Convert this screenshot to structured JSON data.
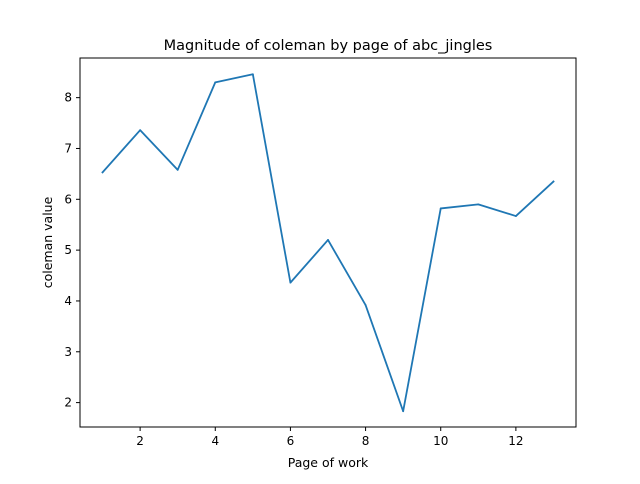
{
  "chart_data": {
    "type": "line",
    "title": "Magnitude of coleman by page of abc_jingles",
    "xlabel": "Page of work",
    "ylabel": "coleman value",
    "xlim": [
      0.4,
      13.6
    ],
    "ylim": [
      1.52,
      8.78
    ],
    "xticks": [
      2,
      4,
      6,
      8,
      10,
      12
    ],
    "yticks": [
      2,
      3,
      4,
      5,
      6,
      7,
      8
    ],
    "grid": false,
    "series": [
      {
        "color": "#1f77b4",
        "x": [
          1,
          2,
          3,
          4,
          5,
          6,
          7,
          8,
          9,
          10,
          11,
          12,
          13
        ],
        "y": [
          6.53,
          7.36,
          6.58,
          8.3,
          8.46,
          4.36,
          5.2,
          3.92,
          1.83,
          5.82,
          5.9,
          5.67,
          6.35
        ]
      }
    ]
  }
}
